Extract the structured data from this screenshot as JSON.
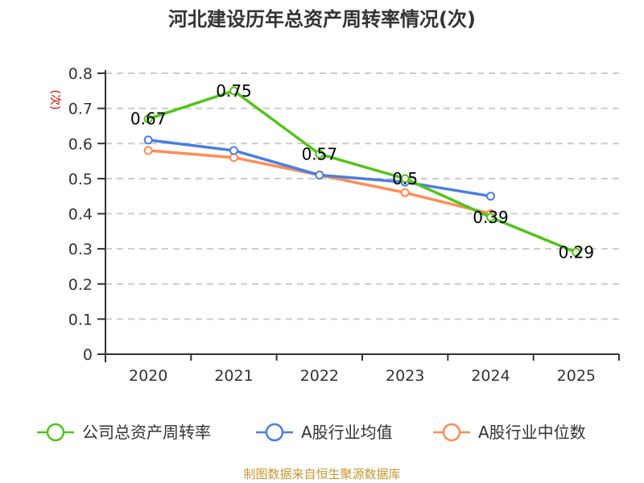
{
  "chart_data": {
    "type": "line",
    "title": "河北建设历年总资产周转率情况(次)",
    "ylabel": "(次)",
    "xlabel": "",
    "ylim": [
      0,
      0.8
    ],
    "yticks": [
      "0",
      "0.1",
      "0.2",
      "0.3",
      "0.4",
      "0.5",
      "0.6",
      "0.7",
      "0.8"
    ],
    "ytick_values": [
      0,
      0.1,
      0.2,
      0.3,
      0.4,
      0.5,
      0.6,
      0.7,
      0.8
    ],
    "categories": [
      "2020",
      "2021",
      "2022",
      "2023",
      "2024",
      "2025"
    ],
    "grid": true,
    "legend_position": "bottom",
    "series": [
      {
        "name": "公司总资产周转率",
        "color": "#52c41a",
        "values": [
          0.67,
          0.75,
          0.57,
          0.5,
          0.39,
          0.29
        ],
        "labels": [
          "0.67",
          "0.75",
          "0.57",
          "0.5",
          "0.39",
          "0.29"
        ],
        "show_labels": true
      },
      {
        "name": "A股行业均值",
        "color": "#4a7fe0",
        "values": [
          0.61,
          0.58,
          0.51,
          0.49,
          0.45,
          null
        ],
        "show_labels": false
      },
      {
        "name": "A股行业中位数",
        "color": "#ff8c55",
        "values": [
          0.58,
          0.56,
          0.51,
          0.46,
          0.4,
          null
        ],
        "show_labels": false
      }
    ],
    "source": "制图数据来自恒生聚源数据库"
  }
}
